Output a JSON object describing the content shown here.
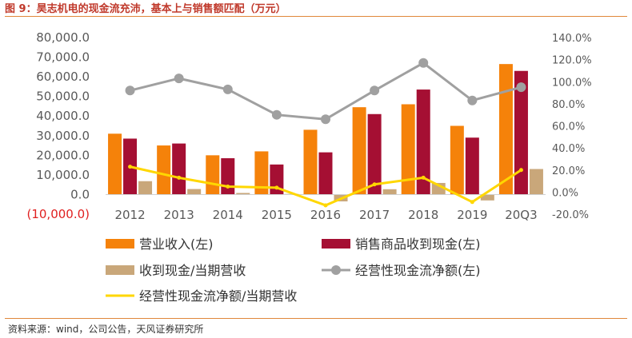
{
  "header": {
    "title": "图 9：昊志机电的现金流充沛，基本上与销售额匹配（万元）"
  },
  "footer": {
    "source": "资料来源：wind，公司公告，天风证券研究所"
  },
  "colors": {
    "revenue": "#f5820a",
    "cash_received": "#a50f33",
    "ratio_received": "#c9a77a",
    "op_cash_flow": "#a0a0a0",
    "ratio_ocf": "#ffd700",
    "negative_label": "#e02020",
    "axis_text": "#595959"
  },
  "chart_data": {
    "type": "bar",
    "categories": [
      "2012",
      "2013",
      "2014",
      "2015",
      "2016",
      "2017",
      "2018",
      "2019",
      "20Q3"
    ],
    "ylim_left": [
      -10000,
      80000
    ],
    "ylim_right": [
      -20,
      140
    ],
    "left_ticks": [
      "80,000.0",
      "70,000.0",
      "60,000.0",
      "50,000.0",
      "40,000.0",
      "30,000.0",
      "20,000.0",
      "10,000.0",
      "0.0",
      "(10,000.0)"
    ],
    "right_ticks": [
      "140.0%",
      "120.0%",
      "100.0%",
      "80.0%",
      "60.0%",
      "40.0%",
      "20.0%",
      "0.0%",
      "-20.0%"
    ],
    "left_tick_values": [
      80000,
      70000,
      60000,
      50000,
      40000,
      30000,
      20000,
      10000,
      0,
      -10000
    ],
    "right_tick_values": [
      140,
      120,
      100,
      80,
      60,
      40,
      20,
      0,
      -20
    ],
    "bar_series": [
      {
        "name": "营业收入(左)",
        "values": [
          31000,
          25000,
          20000,
          22000,
          33000,
          44500,
          46000,
          35000,
          66500
        ]
      },
      {
        "name": "销售商品收到现金(左)",
        "values": [
          28500,
          26000,
          18500,
          15300,
          21500,
          41000,
          53500,
          29000,
          63000
        ]
      },
      {
        "name": "收到现金/当期营收",
        "values": [
          6800,
          2800,
          800,
          300,
          -3500,
          2700,
          5900,
          -3000,
          13000
        ]
      }
    ],
    "line_series": [
      {
        "name": "经营性现金流净额(左)",
        "values": [
          92,
          103,
          93,
          70,
          66,
          92,
          117,
          83,
          95
        ]
      },
      {
        "name": "经营性现金流净额/当期营收",
        "values": [
          23,
          13,
          5,
          4,
          -12,
          7,
          13,
          -9,
          20
        ]
      }
    ],
    "legend": [
      "营业收入(左)",
      "销售商品收到现金(左)",
      "收到现金/当期营收",
      "经营性现金流净额(左)",
      "经营性现金流净额/当期营收"
    ],
    "legend_position": "bottom",
    "grid": false
  }
}
